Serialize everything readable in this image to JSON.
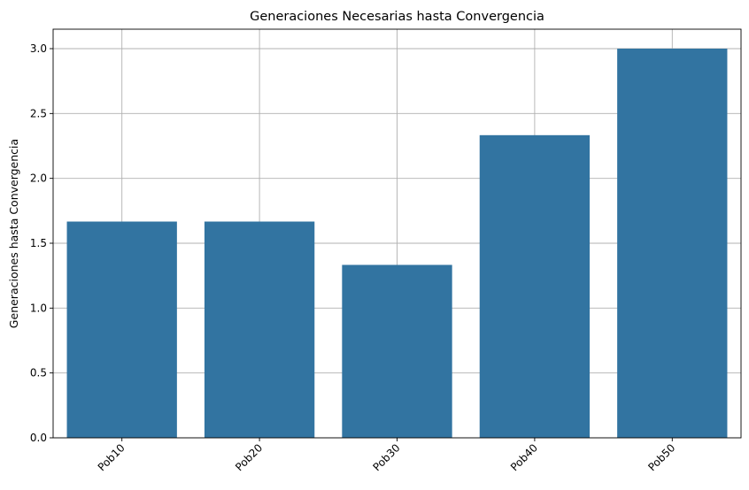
{
  "chart_data": {
    "type": "bar",
    "title": "Generaciones Necesarias hasta Convergencia",
    "xlabel": "",
    "ylabel": "Generaciones hasta Convergencia",
    "categories": [
      "Pob10",
      "Pob20",
      "Pob30",
      "Pob40",
      "Pob50"
    ],
    "values": [
      1.667,
      1.667,
      1.333,
      2.333,
      3.0
    ],
    "ylim": [
      0,
      3.15
    ],
    "yticks": [
      0.0,
      0.5,
      1.0,
      1.5,
      2.0,
      2.5,
      3.0
    ],
    "ytick_labels": [
      "0.0",
      "0.5",
      "1.0",
      "1.5",
      "2.0",
      "2.5",
      "3.0"
    ],
    "xtick_rotation_deg": 45,
    "grid": true,
    "bar_color": "#3274a1",
    "grid_color": "#b0b0b0"
  }
}
